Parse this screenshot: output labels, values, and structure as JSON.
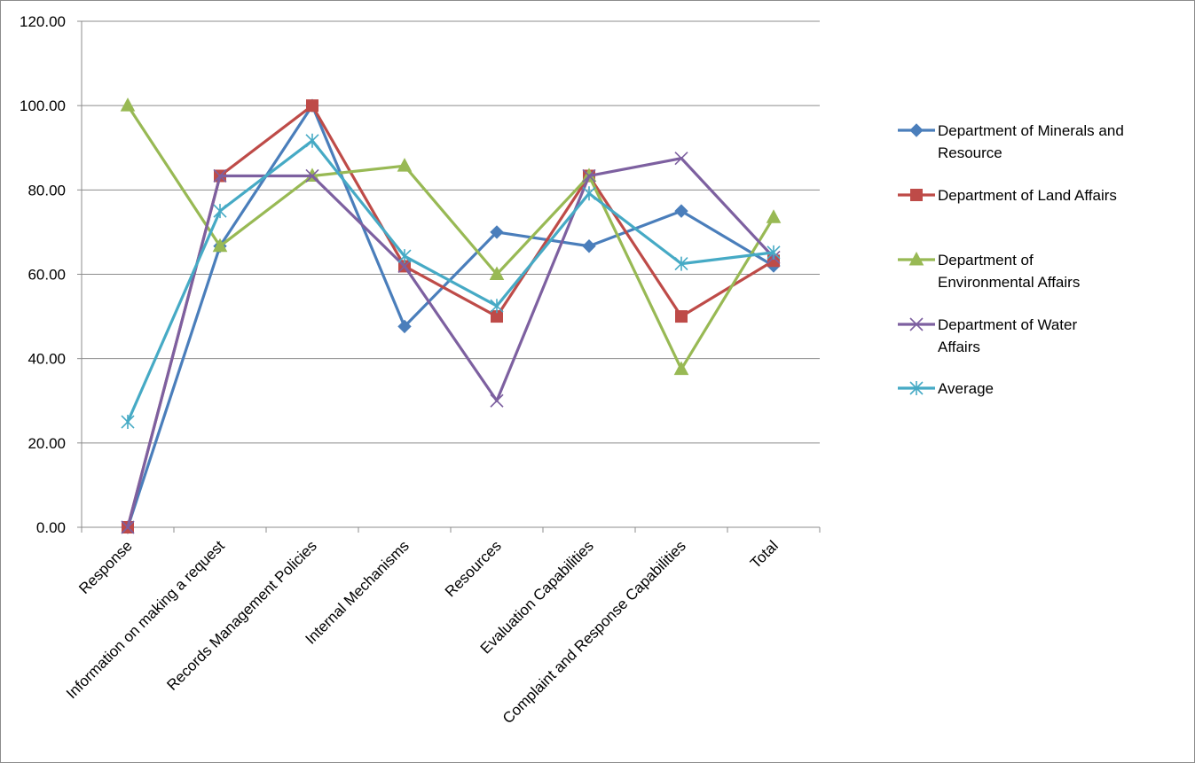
{
  "chart_data": {
    "type": "line",
    "categories": [
      "Response",
      "Information on making a request",
      "Records Management Policies",
      "Internal Mechanisms",
      "Resources",
      "Evaluation Capabilities",
      "Complaint and Response Capabilities",
      "Total"
    ],
    "series": [
      {
        "name": "Department of Minerals and Resource",
        "color": "#4a7ebb",
        "marker": "diamond",
        "values": [
          0,
          66.67,
          100,
          47.62,
          70,
          66.67,
          75,
          62
        ]
      },
      {
        "name": "Department of Land Affairs",
        "color": "#be4b48",
        "marker": "square",
        "values": [
          0,
          83.33,
          100,
          61.9,
          50,
          83.33,
          50,
          63.2
        ]
      },
      {
        "name": "Department of Environmental Affairs",
        "color": "#98b954",
        "marker": "triangle",
        "values": [
          100,
          66.67,
          83.33,
          85.71,
          60,
          83.33,
          37.5,
          73.5
        ]
      },
      {
        "name": "Department of Water Affairs",
        "color": "#7d60a0",
        "marker": "x",
        "values": [
          0,
          83.33,
          83.33,
          61.9,
          30,
          83.33,
          87.5,
          64
        ]
      },
      {
        "name": "Average",
        "color": "#46aac5",
        "marker": "star",
        "values": [
          25,
          75,
          91.67,
          64.29,
          52.5,
          79.17,
          62.5,
          65.18
        ]
      }
    ],
    "y_ticks": [
      "0.00",
      "20.00",
      "40.00",
      "60.00",
      "80.00",
      "100.00",
      "120.00"
    ],
    "ylim": [
      0,
      120
    ],
    "grid": true,
    "legend_position": "right",
    "title": "",
    "xlabel": "",
    "ylabel": ""
  }
}
